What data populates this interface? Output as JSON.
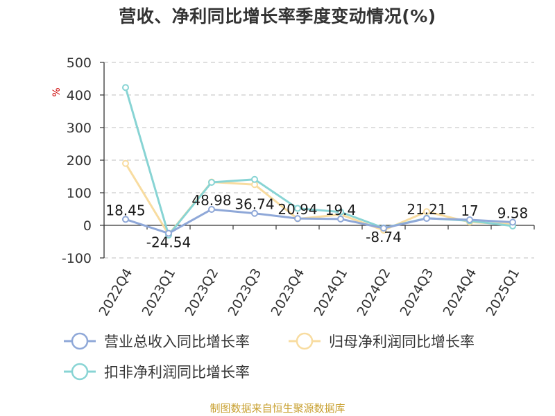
{
  "chart_data": {
    "type": "line",
    "title": "营收、净利同比增长率季度变动情况(%)",
    "ylabel": "%",
    "xlabel": "",
    "ylim": [
      -100,
      500
    ],
    "yticks": [
      -100,
      0,
      100,
      200,
      300,
      400,
      500
    ],
    "grid": true,
    "legend_position": "bottom",
    "categories": [
      "2022Q4",
      "2023Q1",
      "2023Q2",
      "2023Q3",
      "2023Q4",
      "2024Q1",
      "2024Q2",
      "2024Q3",
      "2024Q4",
      "2025Q1"
    ],
    "series": [
      {
        "name": "营业总收入同比增长率",
        "color": "#8fa8d8",
        "values": [
          18.45,
          -24.54,
          48.98,
          36.74,
          20.94,
          19.4,
          -8.74,
          21.21,
          17,
          9.58
        ],
        "labels": [
          "18.45",
          "-24.54",
          "48.98",
          "36.74",
          "20.94",
          "19.4",
          "-8.74",
          "21.21",
          "17",
          "9.58"
        ]
      },
      {
        "name": "归母净利润同比增长率",
        "color": "#f8dca0",
        "values": [
          190,
          -28,
          133,
          125,
          20,
          33,
          -15,
          42,
          10,
          3
        ]
      },
      {
        "name": "扣非净利润同比增长率",
        "color": "#88d4d4",
        "values": [
          423,
          -30,
          132,
          141,
          52,
          41,
          -8,
          22,
          14,
          -2
        ]
      }
    ]
  },
  "source": "制图数据来自恒生聚源数据库"
}
